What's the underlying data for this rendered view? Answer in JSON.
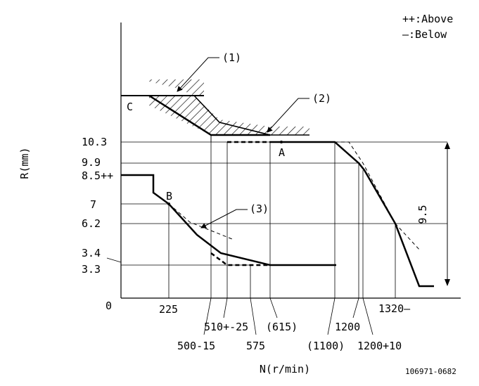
{
  "legend": {
    "above": "++:Above",
    "below": "—:Below"
  },
  "axis": {
    "ylabel": "R(mm)",
    "xlabel": "N(r/min)",
    "origin": "0"
  },
  "y_ticks": [
    "10.3",
    "9.9",
    "8.5++",
    "7",
    "6.2",
    "3.4",
    "3.3"
  ],
  "x_ticks": [
    "225",
    "500-15",
    "510+-25",
    "575",
    "(615)",
    "(1100)",
    "1200",
    "1200+10",
    "1320—"
  ],
  "callouts": [
    "(1)",
    "(2)",
    "(3)"
  ],
  "points": [
    "A",
    "B",
    "C"
  ],
  "dimension": "9.5",
  "drawing_number": "106971-0682"
}
